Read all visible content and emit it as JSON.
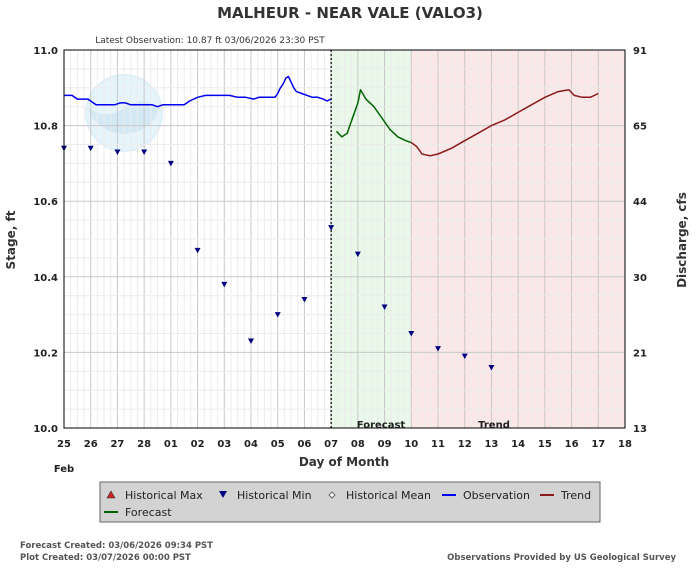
{
  "chart_data": {
    "type": "line",
    "title": "MALHEUR - NEAR VALE  (VALO3)",
    "latest_observation": "Latest Observation: 10.87 ft 03/06/2026 23:30 PST",
    "xlabel": "Day of Month",
    "ylabel_left": "Stage, ft",
    "ylabel_right": "Discharge, cfs",
    "month_label": "Feb",
    "x_tick_labels": [
      "25",
      "26",
      "27",
      "28",
      "01",
      "02",
      "03",
      "04",
      "05",
      "06",
      "07",
      "08",
      "09",
      "10",
      "11",
      "12",
      "13",
      "14",
      "15",
      "16",
      "17",
      "18"
    ],
    "xlim": [
      0,
      21
    ],
    "ylim": [
      10.0,
      11.0
    ],
    "y_ticks": [
      10.0,
      10.2,
      10.4,
      10.6,
      10.8,
      11.0
    ],
    "y_tick_labels": [
      "10.0",
      "10.2",
      "10.4",
      "10.6",
      "10.8",
      "11.0"
    ],
    "right_ticks": [
      {
        "stage": 10.0,
        "label": "13"
      },
      {
        "stage": 10.2,
        "label": "21"
      },
      {
        "stage": 10.4,
        "label": "30"
      },
      {
        "stage": 10.6,
        "label": "44"
      },
      {
        "stage": 10.8,
        "label": "65"
      },
      {
        "stage": 11.0,
        "label": "91"
      }
    ],
    "grid": true,
    "now_x": 10.0,
    "forecast_region": [
      10.0,
      13.0
    ],
    "trend_region": [
      13.0,
      21.0
    ],
    "forecast_region_label": "Forecast",
    "trend_region_label": "Trend",
    "colors": {
      "observation": "#0000ee",
      "forecast": "#006400",
      "trend": "#8b1a1a",
      "historical_max": "#cc2222",
      "historical_min": "#000080",
      "historical_mean": "#666666",
      "forecast_band": "#e9f8e9",
      "trend_band": "#fbe7e7"
    },
    "series": [
      {
        "name": "Observation",
        "type": "line",
        "points": [
          [
            0.0,
            10.88
          ],
          [
            0.3,
            10.88
          ],
          [
            0.5,
            10.87
          ],
          [
            0.9,
            10.87
          ],
          [
            1.1,
            10.86
          ],
          [
            1.2,
            10.855
          ],
          [
            1.5,
            10.855
          ],
          [
            1.9,
            10.855
          ],
          [
            2.1,
            10.86
          ],
          [
            2.3,
            10.86
          ],
          [
            2.5,
            10.855
          ],
          [
            3.0,
            10.855
          ],
          [
            3.3,
            10.855
          ],
          [
            3.5,
            10.85
          ],
          [
            3.7,
            10.855
          ],
          [
            4.0,
            10.855
          ],
          [
            4.3,
            10.855
          ],
          [
            4.5,
            10.855
          ],
          [
            4.7,
            10.865
          ],
          [
            5.0,
            10.875
          ],
          [
            5.3,
            10.88
          ],
          [
            5.8,
            10.88
          ],
          [
            6.2,
            10.88
          ],
          [
            6.5,
            10.875
          ],
          [
            6.8,
            10.875
          ],
          [
            7.1,
            10.87
          ],
          [
            7.3,
            10.875
          ],
          [
            7.5,
            10.875
          ],
          [
            7.7,
            10.875
          ],
          [
            7.9,
            10.875
          ],
          [
            8.0,
            10.885
          ],
          [
            8.1,
            10.9
          ],
          [
            8.2,
            10.91
          ],
          [
            8.3,
            10.925
          ],
          [
            8.4,
            10.93
          ],
          [
            8.5,
            10.915
          ],
          [
            8.6,
            10.9
          ],
          [
            8.7,
            10.89
          ],
          [
            8.9,
            10.885
          ],
          [
            9.1,
            10.88
          ],
          [
            9.3,
            10.875
          ],
          [
            9.5,
            10.875
          ],
          [
            9.7,
            10.87
          ],
          [
            9.85,
            10.865
          ],
          [
            10.0,
            10.87
          ]
        ]
      },
      {
        "name": "Forecast",
        "type": "line",
        "points": [
          [
            10.2,
            10.785
          ],
          [
            10.4,
            10.77
          ],
          [
            10.6,
            10.78
          ],
          [
            10.8,
            10.82
          ],
          [
            11.0,
            10.86
          ],
          [
            11.1,
            10.895
          ],
          [
            11.3,
            10.87
          ],
          [
            11.6,
            10.85
          ],
          [
            11.9,
            10.82
          ],
          [
            12.2,
            10.79
          ],
          [
            12.5,
            10.77
          ],
          [
            12.8,
            10.76
          ],
          [
            13.0,
            10.755
          ]
        ]
      },
      {
        "name": "Trend",
        "type": "line",
        "points": [
          [
            13.0,
            10.755
          ],
          [
            13.2,
            10.745
          ],
          [
            13.4,
            10.725
          ],
          [
            13.7,
            10.72
          ],
          [
            14.0,
            10.725
          ],
          [
            14.5,
            10.74
          ],
          [
            15.0,
            10.76
          ],
          [
            15.5,
            10.78
          ],
          [
            16.0,
            10.8
          ],
          [
            16.5,
            10.815
          ],
          [
            17.0,
            10.835
          ],
          [
            17.5,
            10.855
          ],
          [
            18.0,
            10.875
          ],
          [
            18.5,
            10.89
          ],
          [
            18.9,
            10.895
          ],
          [
            19.1,
            10.88
          ],
          [
            19.4,
            10.875
          ],
          [
            19.7,
            10.875
          ],
          [
            20.0,
            10.885
          ]
        ]
      },
      {
        "name": "Historical Min",
        "type": "marker",
        "points": [
          [
            0.0,
            10.74
          ],
          [
            1.0,
            10.74
          ],
          [
            2.0,
            10.73
          ],
          [
            3.0,
            10.73
          ],
          [
            4.0,
            10.7
          ],
          [
            5.0,
            10.47
          ],
          [
            6.0,
            10.38
          ],
          [
            7.0,
            10.23
          ],
          [
            8.0,
            10.3
          ],
          [
            9.0,
            10.34
          ],
          [
            10.0,
            10.53
          ],
          [
            11.0,
            10.46
          ],
          [
            12.0,
            10.32
          ],
          [
            13.0,
            10.25
          ],
          [
            14.0,
            10.21
          ],
          [
            15.0,
            10.19
          ],
          [
            16.0,
            10.16
          ]
        ]
      }
    ],
    "legend": [
      {
        "name": "Historical Max",
        "symbol": "triangle-up",
        "color": "#cc2222"
      },
      {
        "name": "Historical Min",
        "symbol": "triangle-down",
        "color": "#000080"
      },
      {
        "name": "Historical Mean",
        "symbol": "diamond",
        "color": "#666666"
      },
      {
        "name": "Observation",
        "symbol": "line",
        "color": "#0000ee"
      },
      {
        "name": "Trend",
        "symbol": "line",
        "color": "#8b1a1a"
      },
      {
        "name": "Forecast",
        "symbol": "line",
        "color": "#006400"
      }
    ]
  },
  "footer": {
    "forecast_created": "Forecast Created: 03/06/2026 09:34 PST",
    "plot_created": "Plot Created: 03/07/2026 00:00 PST",
    "credit": "Observations Provided by US Geological Survey"
  },
  "icons": {
    "watermark": "noaa-logo-icon"
  }
}
